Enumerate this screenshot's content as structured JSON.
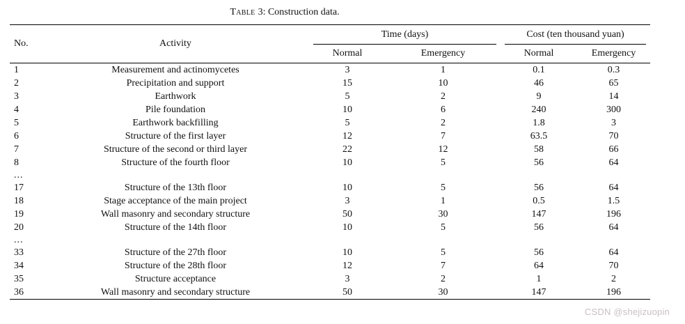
{
  "caption": {
    "label": "Table",
    "rest": "3: Construction data."
  },
  "table": {
    "columns": {
      "no": "No.",
      "activity": "Activity",
      "time_group": "Time (days)",
      "cost_group": "Cost (ten thousand yuan)",
      "normal": "Normal",
      "emergency": "Emergency"
    },
    "rows": [
      [
        "1",
        "Measurement and actinomycetes",
        "3",
        "1",
        "0.1",
        "0.3"
      ],
      [
        "2",
        "Precipitation and support",
        "15",
        "10",
        "46",
        "65"
      ],
      [
        "3",
        "Earthwork",
        "5",
        "2",
        "9",
        "14"
      ],
      [
        "4",
        "Pile foundation",
        "10",
        "6",
        "240",
        "300"
      ],
      [
        "5",
        "Earthwork backfilling",
        "5",
        "2",
        "1.8",
        "3"
      ],
      [
        "6",
        "Structure of the first layer",
        "12",
        "7",
        "63.5",
        "70"
      ],
      [
        "7",
        "Structure of the second or third layer",
        "22",
        "12",
        "58",
        "66"
      ],
      [
        "8",
        "Structure of the fourth floor",
        "10",
        "5",
        "56",
        "64"
      ],
      [
        "...",
        "",
        "",
        "",
        "",
        ""
      ],
      [
        "17",
        "Structure of the 13th floor",
        "10",
        "5",
        "56",
        "64"
      ],
      [
        "18",
        "Stage acceptance of the main project",
        "3",
        "1",
        "0.5",
        "1.5"
      ],
      [
        "19",
        "Wall masonry and secondary structure",
        "50",
        "30",
        "147",
        "196"
      ],
      [
        "20",
        "Structure of the 14th floor",
        "10",
        "5",
        "56",
        "64"
      ],
      [
        "...",
        "",
        "",
        "",
        "",
        ""
      ],
      [
        "33",
        "Structure of the 27th floor",
        "10",
        "5",
        "56",
        "64"
      ],
      [
        "34",
        "Structure of the 28th floor",
        "12",
        "7",
        "64",
        "70"
      ],
      [
        "35",
        "Structure acceptance",
        "3",
        "2",
        "1",
        "2"
      ],
      [
        "36",
        "Wall masonry and secondary structure",
        "50",
        "30",
        "147",
        "196"
      ]
    ]
  },
  "watermark": {
    "text": "CSDN @shejizuopin",
    "color": "#c9c0c0"
  }
}
